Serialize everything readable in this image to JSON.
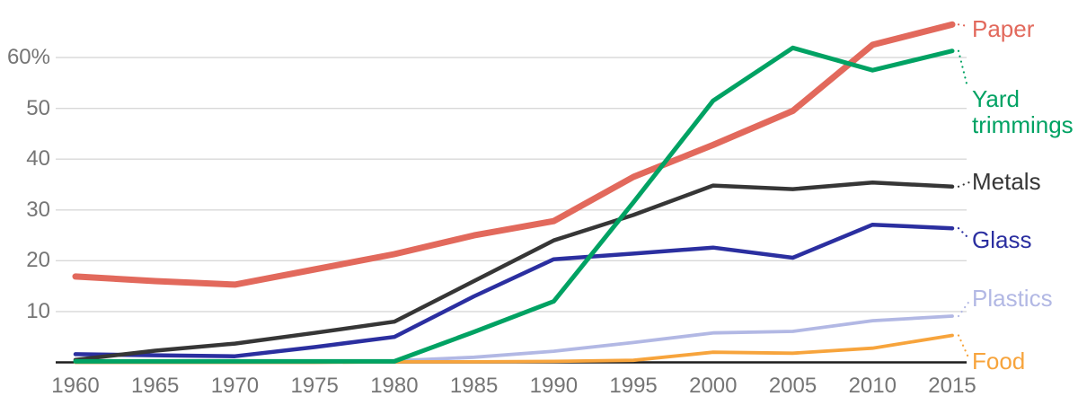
{
  "chart_data": {
    "type": "line",
    "title": "",
    "xlabel": "",
    "ylabel": "",
    "unit": "%",
    "grid": true,
    "legend_position": "right-inline",
    "ylim": [
      0,
      68
    ],
    "categories": [
      "1960",
      "1965",
      "1970",
      "1975",
      "1980",
      "1985",
      "1990",
      "1995",
      "2000",
      "2005",
      "2010",
      "2015"
    ],
    "y_ticks": [
      {
        "value": 10,
        "label": "10"
      },
      {
        "value": 20,
        "label": "20"
      },
      {
        "value": 30,
        "label": "30"
      },
      {
        "value": 40,
        "label": "40"
      },
      {
        "value": 50,
        "label": "50"
      },
      {
        "value": 60,
        "label": "60%"
      }
    ],
    "series": [
      {
        "id": "paper",
        "name": "Paper",
        "color": "#e2695c",
        "values": [
          16.9,
          16.0,
          15.3,
          18.3,
          21.3,
          25.0,
          27.8,
          36.5,
          42.8,
          49.5,
          62.5,
          66.5
        ]
      },
      {
        "id": "yard",
        "name": "Yard trimmings",
        "color": "#00a263",
        "values": [
          0.2,
          0.2,
          0.2,
          0.2,
          0.2,
          6.0,
          12.0,
          31.5,
          51.5,
          61.9,
          57.5,
          61.3
        ]
      },
      {
        "id": "metals",
        "name": "Metals",
        "color": "#363636",
        "values": [
          0.5,
          2.3,
          3.7,
          5.8,
          8.0,
          16.0,
          24.0,
          29.0,
          34.8,
          34.1,
          35.4,
          34.6
        ]
      },
      {
        "id": "glass",
        "name": "Glass",
        "color": "#2b2fa0",
        "values": [
          1.6,
          1.4,
          1.2,
          3.0,
          5.0,
          13.0,
          20.3,
          21.4,
          22.6,
          20.6,
          27.1,
          26.4
        ]
      },
      {
        "id": "plastics",
        "name": "Plastics",
        "color": "#b2b8e4",
        "values": [
          0,
          0,
          0,
          0,
          0.3,
          1.0,
          2.2,
          3.9,
          5.8,
          6.1,
          8.2,
          9.1
        ]
      },
      {
        "id": "food",
        "name": "Food",
        "color": "#f7a43c",
        "values": [
          0,
          0,
          0,
          0,
          0.1,
          0.1,
          0.2,
          0.4,
          2.0,
          1.8,
          2.8,
          5.3
        ]
      }
    ],
    "colors": {
      "axis_text": "#757575",
      "gridline": "#d8d8d8",
      "baseline": "#1d1d1d",
      "background": "#ffffff"
    }
  }
}
